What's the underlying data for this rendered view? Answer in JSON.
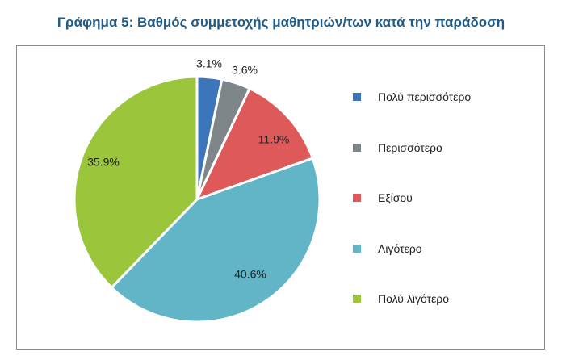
{
  "chart_data": {
    "type": "pie",
    "title": "Γράφημα 5: Βαθμός συμμετοχής μαθητριών/των κατά την παράδοση",
    "start_angle_deg": 0,
    "direction": "clockwise",
    "legend_position": "right",
    "unit": "%",
    "slices": [
      {
        "label": "Πολύ περισσότερο",
        "value": 3.1,
        "display": "3.1%",
        "color": "#3c75ba"
      },
      {
        "label": "Περισσότερο",
        "value": 3.6,
        "display": "3.6%",
        "color": "#7f8689"
      },
      {
        "label": "Εξίσου",
        "value": 11.9,
        "display": "11.9%",
        "color": "#de5a5a"
      },
      {
        "label": "Λιγότερο",
        "value": 40.6,
        "display": "40.6%",
        "color": "#61b5c6"
      },
      {
        "label": "Πολύ λιγότερο",
        "value": 35.9,
        "display": "35.9%",
        "color": "#9bc63c"
      }
    ]
  }
}
